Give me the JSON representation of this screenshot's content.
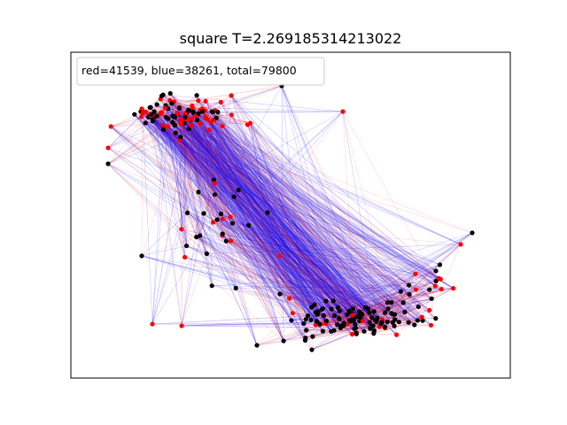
{
  "title": "square T=2.269185314213022",
  "legend": "red=41539, blue=38261, total=79800",
  "colors": {
    "red_edge": "#ff2020",
    "blue_edge": "#0000ff",
    "red_node": "#ff0000",
    "black_node": "#000000",
    "background": "#ffffff",
    "frame": "#000000"
  },
  "counts": {
    "red": 41539,
    "blue": 38261,
    "total": 79800
  },
  "axes": {
    "ticks": false,
    "grid": false
  }
}
